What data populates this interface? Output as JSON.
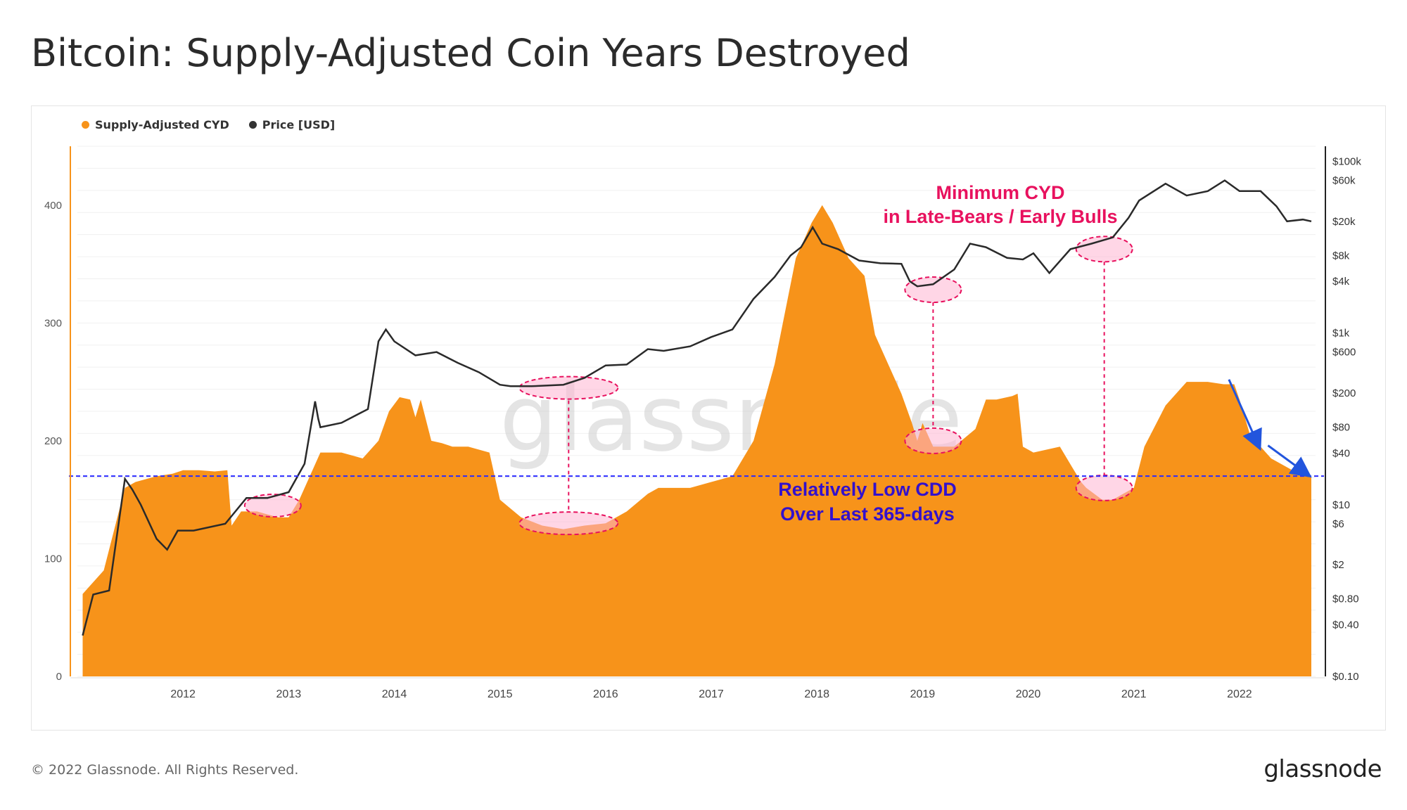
{
  "title": "Bitcoin: Supply-Adjusted Coin Years Destroyed",
  "footer": {
    "copyright": "© 2022 Glassnode. All Rights Reserved.",
    "logo": "glassnode"
  },
  "watermark": "glassnode",
  "colors": {
    "cyd": "#f7931a",
    "price": "#2a2a2a",
    "annotation_red": "#e8115e",
    "annotation_blue": "#3311cc",
    "threshold": "#2a2aff"
  },
  "legend": [
    {
      "label": "Supply-Adjusted CYD",
      "color": "#f7931a"
    },
    {
      "label": "Price [USD]",
      "color": "#333333"
    }
  ],
  "annotations": {
    "min_cyd_line1": "Minimum CYD",
    "min_cyd_line2": "in Late-Bears / Early Bulls",
    "low_cdd_line1": "Relatively Low CDD",
    "low_cdd_line2": "Over Last 365-days"
  },
  "chart_data": {
    "type": "area",
    "x_ticks": [
      "2012",
      "2013",
      "2014",
      "2015",
      "2016",
      "2017",
      "2018",
      "2019",
      "2020",
      "2021",
      "2022"
    ],
    "y_left_ticks": [
      "0",
      "100",
      "200",
      "300",
      "400"
    ],
    "y_left_range": [
      0,
      450
    ],
    "y_right_ticks": [
      "$0.10",
      "$0.40",
      "$0.80",
      "$2",
      "$6",
      "$10",
      "$40",
      "$80",
      "$200",
      "$600",
      "$1k",
      "$4k",
      "$8k",
      "$20k",
      "$60k",
      "$100k"
    ],
    "y_right_scale": "log",
    "threshold_cyd": 170,
    "series": [
      {
        "name": "Supply-Adjusted CYD",
        "axis": "left",
        "x": [
          2011.05,
          2011.25,
          2011.45,
          2011.55,
          2011.75,
          2011.9,
          2012.0,
          2012.15,
          2012.3,
          2012.42,
          2012.46,
          2012.55,
          2012.7,
          2012.9,
          2013.0,
          2013.1,
          2013.2,
          2013.3,
          2013.5,
          2013.7,
          2013.85,
          2013.95,
          2014.05,
          2014.15,
          2014.2,
          2014.25,
          2014.35,
          2014.45,
          2014.55,
          2014.7,
          2014.9,
          2014.95,
          2015.0,
          2015.2,
          2015.4,
          2015.6,
          2015.8,
          2016.0,
          2016.2,
          2016.4,
          2016.5,
          2016.8,
          2017.0,
          2017.2,
          2017.4,
          2017.6,
          2017.8,
          2017.95,
          2018.05,
          2018.15,
          2018.3,
          2018.45,
          2018.55,
          2018.7,
          2018.8,
          2018.9,
          2018.95,
          2019.0,
          2019.1,
          2019.3,
          2019.5,
          2019.6,
          2019.7,
          2019.85,
          2019.9,
          2019.95,
          2020.05,
          2020.3,
          2020.5,
          2020.55,
          2020.7,
          2020.8,
          2020.9,
          2021.0,
          2021.1,
          2021.3,
          2021.5,
          2021.7,
          2021.85,
          2021.95,
          2022.0,
          2022.1,
          2022.3,
          2022.5,
          2022.6,
          2022.68
        ],
        "values": [
          70,
          90,
          160,
          165,
          170,
          172,
          175,
          175,
          174,
          175,
          128,
          140,
          140,
          135,
          135,
          150,
          170,
          190,
          190,
          185,
          200,
          225,
          237,
          235,
          220,
          235,
          200,
          198,
          195,
          195,
          190,
          170,
          150,
          135,
          128,
          125,
          128,
          130,
          140,
          155,
          160,
          160,
          165,
          170,
          200,
          265,
          355,
          385,
          400,
          385,
          355,
          340,
          290,
          260,
          240,
          215,
          200,
          215,
          195,
          195,
          210,
          235,
          235,
          238,
          240,
          195,
          190,
          195,
          165,
          160,
          150,
          150,
          155,
          160,
          195,
          230,
          250,
          250,
          248,
          248,
          235,
          205,
          185,
          175,
          180,
          170
        ]
      },
      {
        "name": "Price [USD]",
        "axis": "right",
        "x": [
          2011.05,
          2011.15,
          2011.3,
          2011.45,
          2011.52,
          2011.6,
          2011.75,
          2011.85,
          2011.95,
          2012.1,
          2012.4,
          2012.6,
          2012.8,
          2013.0,
          2013.15,
          2013.25,
          2013.28,
          2013.3,
          2013.5,
          2013.75,
          2013.85,
          2013.92,
          2014.0,
          2014.2,
          2014.4,
          2014.6,
          2014.8,
          2015.0,
          2015.1,
          2015.3,
          2015.6,
          2015.8,
          2016.0,
          2016.2,
          2016.4,
          2016.55,
          2016.8,
          2017.0,
          2017.2,
          2017.4,
          2017.6,
          2017.75,
          2017.85,
          2017.96,
          2018.05,
          2018.2,
          2018.4,
          2018.6,
          2018.8,
          2018.88,
          2018.95,
          2019.1,
          2019.3,
          2019.45,
          2019.6,
          2019.8,
          2019.95,
          2020.05,
          2020.2,
          2020.4,
          2020.6,
          2020.8,
          2020.95,
          2021.05,
          2021.3,
          2021.5,
          2021.7,
          2021.86,
          2022.0,
          2022.2,
          2022.35,
          2022.45,
          2022.6,
          2022.68
        ],
        "values": [
          0.3,
          0.9,
          1,
          20,
          15,
          10,
          4,
          3,
          5,
          5,
          6,
          12,
          12,
          14,
          30,
          160,
          100,
          80,
          90,
          130,
          800,
          1100,
          800,
          550,
          600,
          450,
          350,
          250,
          240,
          240,
          250,
          300,
          420,
          430,
          650,
          620,
          700,
          900,
          1100,
          2500,
          4500,
          8000,
          10000,
          17000,
          11000,
          9500,
          7000,
          6500,
          6400,
          4000,
          3500,
          3700,
          5500,
          11000,
          10000,
          7500,
          7200,
          8500,
          5000,
          9500,
          11000,
          13000,
          22000,
          35000,
          55000,
          40000,
          45000,
          60000,
          45000,
          45000,
          30000,
          20000,
          21000,
          20000
        ]
      }
    ]
  }
}
